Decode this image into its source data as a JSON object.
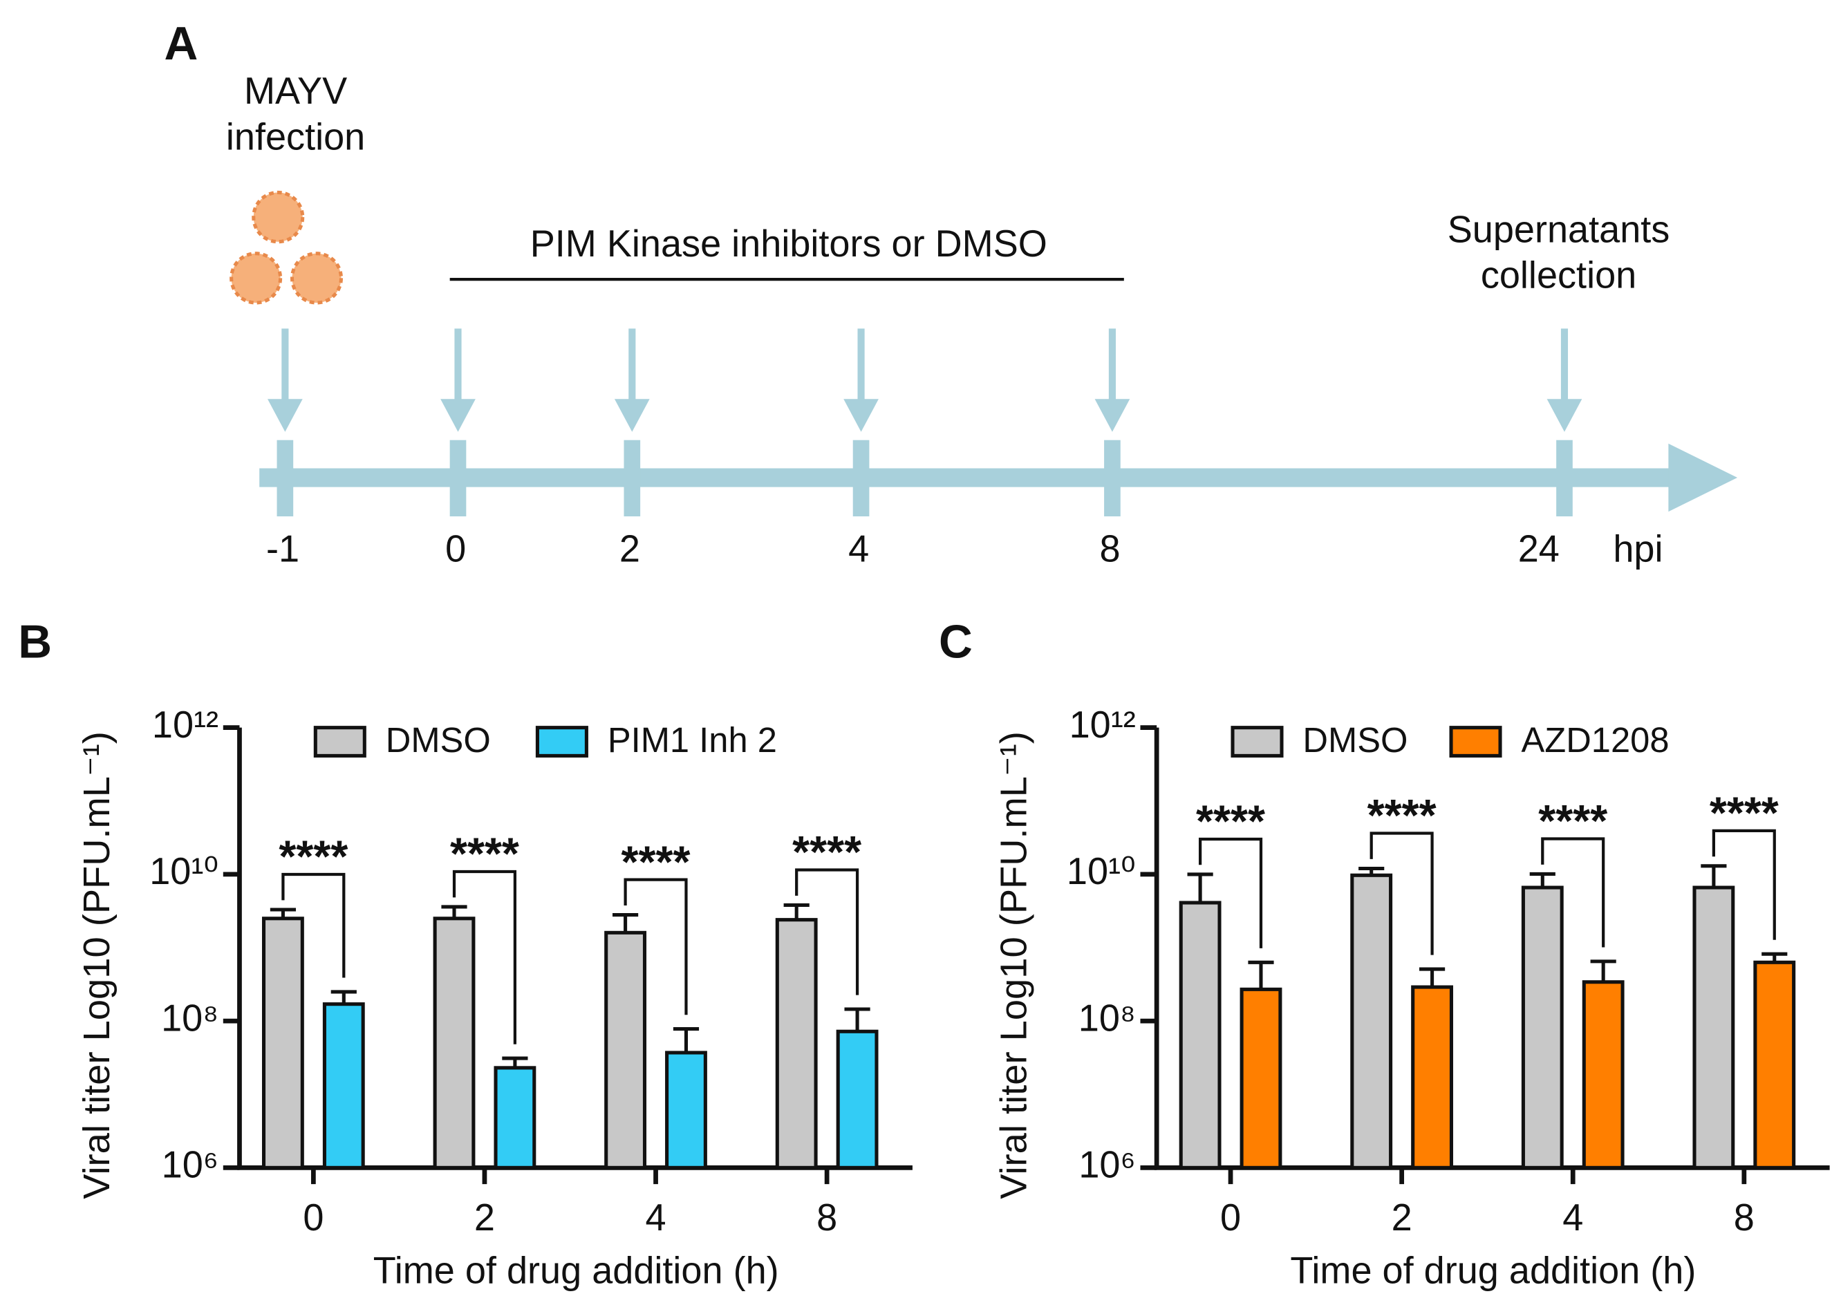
{
  "panel_labels": [
    "A",
    "B",
    "C"
  ],
  "timeline": {
    "labels": [
      [
        "MAYV",
        "infection"
      ],
      [
        "PIM Kinase inhibitors or DMSO"
      ],
      [
        "Supernatants",
        "collection"
      ]
    ],
    "ticks": [
      "-1",
      "0",
      "2",
      "4",
      "8",
      "24"
    ],
    "unit": "hpi"
  },
  "chart_data": [
    {
      "type": "bar",
      "ylabel": "Viral titer Log10 (PFU.mL⁻¹)",
      "xlabel": "Time of drug addition (h)",
      "categories": [
        "0",
        "2",
        "4",
        "8"
      ],
      "log_scale": true,
      "ylim": [
        1000000,
        1000000000000
      ],
      "yticks": [
        {
          "value": 1000000,
          "label": "10⁶"
        },
        {
          "value": 100000000,
          "label": "10⁸"
        },
        {
          "value": 10000000000,
          "label": "10¹⁰"
        },
        {
          "value": 1000000000000,
          "label": "10¹²"
        }
      ],
      "series": [
        {
          "name": "DMSO",
          "color": "#c8c8c8",
          "values": [
            2500000000,
            2500000000,
            1600000000,
            2400000000
          ],
          "errors": [
            800000000,
            1100000000,
            1200000000,
            1400000000
          ]
        },
        {
          "name": "PIM1 Inh 2",
          "color": "#33ccf5",
          "values": [
            170000000,
            23000000,
            37000000,
            72000000
          ],
          "errors": [
            80000000,
            8000000,
            41000000,
            73000000
          ]
        }
      ],
      "annotations": [
        "****",
        "****",
        "****",
        "****"
      ]
    },
    {
      "type": "bar",
      "ylabel": "Viral titer Log10 (PFU.mL⁻¹)",
      "xlabel": "Time of drug addition (h)",
      "categories": [
        "0",
        "2",
        "4",
        "8"
      ],
      "log_scale": true,
      "ylim": [
        1000000,
        1000000000000
      ],
      "yticks": [
        {
          "value": 1000000,
          "label": "10⁶"
        },
        {
          "value": 100000000,
          "label": "10⁸"
        },
        {
          "value": 10000000000,
          "label": "10¹⁰"
        },
        {
          "value": 1000000000000,
          "label": "10¹²"
        }
      ],
      "series": [
        {
          "name": "DMSO",
          "color": "#c8c8c8",
          "values": [
            4100000000,
            9700000000,
            6600000000,
            6600000000
          ],
          "errors": [
            5900000000,
            2300000000,
            3500000000,
            6400000000
          ]
        },
        {
          "name": "AZD1208",
          "color": "#ff7f00",
          "values": [
            270000000,
            290000000,
            340000000,
            630000000
          ],
          "errors": [
            360000000,
            220000000,
            310000000,
            190000000
          ]
        }
      ],
      "annotations": [
        "****",
        "****",
        "****",
        "****"
      ]
    }
  ]
}
